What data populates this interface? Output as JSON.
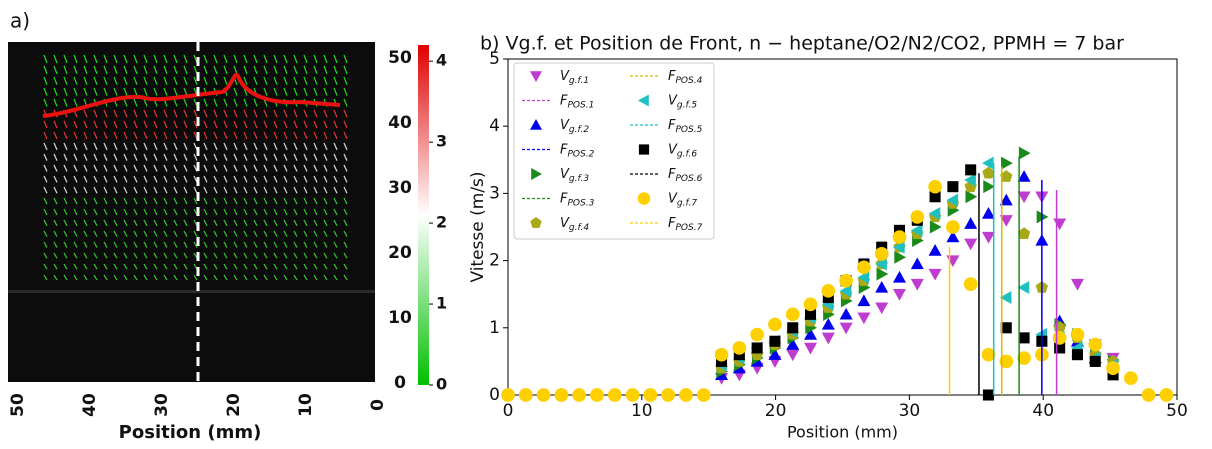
{
  "chart_data": [
    {
      "type": "image",
      "label": "a)",
      "xlabel": "Position (mm)",
      "xlim": [
        50,
        0
      ],
      "xticks": [
        50,
        40,
        30,
        20,
        10,
        0
      ],
      "scale_lim": [
        0,
        52
      ],
      "scale_ticks": [
        0,
        10,
        20,
        30,
        40,
        50
      ],
      "colorbar_lim": [
        0,
        4.2
      ],
      "colorbar_ticks": [
        0,
        1,
        2,
        3,
        4
      ],
      "colorbar_colors": [
        "#00c000",
        "#ffffff",
        "#e00000"
      ]
    },
    {
      "type": "scatter",
      "title": "b) Vg.f. et Position de Front, n − heptane/O2/N2/CO2, PPMH = 7 bar",
      "xlabel": "Position (mm)",
      "ylabel": "Vitesse (m/s)",
      "xlim": [
        0,
        50
      ],
      "xticks": [
        0,
        10,
        20,
        30,
        40,
        50
      ],
      "ylim": [
        0,
        5
      ],
      "yticks": [
        0,
        1,
        2,
        3,
        4,
        5
      ],
      "legend": "upper left",
      "x": [
        0,
        1.33,
        2.66,
        3.99,
        5.32,
        6.65,
        7.98,
        9.31,
        10.64,
        11.97,
        13.3,
        14.63,
        15.96,
        17.29,
        18.62,
        19.95,
        21.28,
        22.61,
        23.94,
        25.27,
        26.6,
        27.93,
        29.26,
        30.59,
        31.92,
        33.25,
        34.58,
        35.91,
        37.24,
        38.57,
        39.9,
        41.23,
        42.56,
        43.89,
        45.22,
        46.55,
        47.88,
        49.21
      ],
      "series": [
        {
          "name": "Vg.f.1",
          "color": "#c03cd0",
          "marker": "v",
          "values": [
            null,
            null,
            null,
            null,
            null,
            null,
            null,
            null,
            null,
            null,
            null,
            null,
            0.25,
            0.3,
            0.4,
            0.5,
            0.6,
            0.7,
            0.85,
            1.0,
            1.15,
            1.3,
            1.5,
            1.65,
            1.8,
            2.0,
            2.25,
            2.35,
            2.6,
            2.95,
            2.95,
            2.55,
            1.65,
            0.75,
            0.55,
            null,
            null,
            null
          ]
        },
        {
          "name": "FPOS.1",
          "color": "#c03cd0",
          "marker": "line",
          "x": [
            41.0,
            41.0
          ],
          "values": [
            0,
            3.05
          ]
        },
        {
          "name": "Vg.f.2",
          "color": "#0000ee",
          "marker": "^",
          "values": [
            null,
            null,
            null,
            null,
            null,
            null,
            null,
            null,
            null,
            null,
            null,
            null,
            0.3,
            0.4,
            0.5,
            0.6,
            0.75,
            0.9,
            1.05,
            1.2,
            1.4,
            1.6,
            1.75,
            1.95,
            2.15,
            2.35,
            2.55,
            2.7,
            2.9,
            3.25,
            2.3,
            1.1,
            0.8,
            0.55,
            0.45,
            null,
            null,
            null
          ]
        },
        {
          "name": "FPOS.2",
          "color": "#0000ee",
          "marker": "line",
          "x": [
            39.9,
            39.9
          ],
          "values": [
            0,
            3.2
          ]
        },
        {
          "name": "Vg.f.3",
          "color": "#1a8a1a",
          "marker": ">",
          "values": [
            null,
            null,
            null,
            null,
            null,
            null,
            null,
            null,
            null,
            null,
            null,
            null,
            0.35,
            0.45,
            0.55,
            0.7,
            0.85,
            1.0,
            1.2,
            1.4,
            1.6,
            1.8,
            2.05,
            2.3,
            2.5,
            2.75,
            2.95,
            3.1,
            3.45,
            3.6,
            2.65,
            1.05,
            0.9,
            0.6,
            0.5,
            null,
            null,
            null
          ]
        },
        {
          "name": "FPOS.3",
          "color": "#1a8a1a",
          "marker": "line",
          "x": [
            38.2,
            38.2
          ],
          "values": [
            0,
            3.55
          ]
        },
        {
          "name": "Vg.f.4",
          "color": "#a8a818",
          "marker": "p",
          "values": [
            null,
            null,
            null,
            null,
            null,
            null,
            null,
            null,
            null,
            null,
            null,
            null,
            0.4,
            0.5,
            0.6,
            0.75,
            0.9,
            1.1,
            1.3,
            1.5,
            1.7,
            1.95,
            2.2,
            2.4,
            2.65,
            2.85,
            3.1,
            3.3,
            3.25,
            2.4,
            1.6,
            1.0,
            0.85,
            0.6,
            0.5,
            null,
            null,
            null
          ]
        },
        {
          "name": "FPOS.4",
          "color": "#d8b800",
          "marker": "line",
          "x": [
            36.9,
            36.9
          ],
          "values": [
            0,
            3.4
          ]
        },
        {
          "name": "Vg.f.5",
          "color": "#20c0c0",
          "marker": "<",
          "values": [
            null,
            null,
            null,
            null,
            null,
            null,
            null,
            null,
            null,
            null,
            null,
            null,
            0.45,
            0.55,
            0.7,
            0.8,
            0.95,
            1.15,
            1.35,
            1.55,
            1.75,
            1.95,
            2.2,
            2.45,
            2.7,
            2.9,
            3.2,
            3.45,
            1.45,
            1.6,
            0.9,
            0.85,
            0.7,
            0.55,
            0.45,
            null,
            null,
            null
          ]
        },
        {
          "name": "FPOS.5",
          "color": "#20c0c0",
          "marker": "line",
          "x": [
            36.3,
            36.3
          ],
          "values": [
            0,
            3.45
          ]
        },
        {
          "name": "Vg.f.6",
          "color": "#000000",
          "marker": "s",
          "values": [
            null,
            null,
            null,
            null,
            null,
            null,
            null,
            null,
            null,
            null,
            null,
            null,
            0.5,
            0.6,
            0.7,
            0.8,
            1.0,
            1.2,
            1.45,
            1.7,
            1.95,
            2.2,
            2.45,
            2.6,
            2.95,
            3.1,
            3.35,
            0,
            1.0,
            0.85,
            0.8,
            0.7,
            0.6,
            0.5,
            0.3,
            null,
            null,
            null
          ]
        },
        {
          "name": "FPOS.6",
          "color": "#000000",
          "marker": "line",
          "x": [
            35.2,
            35.2
          ],
          "values": [
            0,
            3.3
          ]
        },
        {
          "name": "Vg.f.7",
          "color": "#ffd000",
          "marker": "o",
          "values": [
            0,
            0,
            0,
            0,
            0,
            0,
            0,
            0,
            0,
            0,
            0,
            0,
            0.6,
            0.7,
            0.9,
            1.05,
            1.2,
            1.35,
            1.55,
            1.7,
            1.9,
            2.1,
            2.35,
            2.65,
            3.1,
            2.5,
            1.65,
            0.6,
            0.5,
            0.55,
            0.6,
            0.85,
            0.9,
            0.75,
            0.4,
            0.25,
            0,
            0
          ]
        },
        {
          "name": "FPOS.7",
          "color": "#ffd000",
          "marker": "line",
          "x": [
            33.0,
            33.0
          ],
          "values": [
            0,
            2.2
          ]
        }
      ]
    }
  ]
}
